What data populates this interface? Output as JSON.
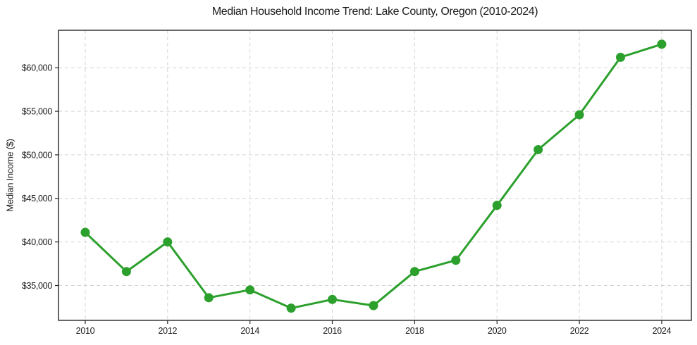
{
  "chart_data": {
    "type": "line",
    "title": "Median Household Income Trend: Lake County, Oregon (2010-2024)",
    "xlabel": "",
    "ylabel": "Median Income ($)",
    "series": [
      {
        "name": "median-household-income",
        "x": [
          2010,
          2011,
          2012,
          2013,
          2014,
          2015,
          2016,
          2017,
          2018,
          2019,
          2020,
          2021,
          2022,
          2023,
          2024
        ],
        "values": [
          41100,
          36600,
          40000,
          33600,
          34500,
          32400,
          33400,
          32700,
          36600,
          37900,
          44200,
          50600,
          54600,
          61200,
          62700
        ]
      }
    ],
    "x_ticks": {
      "values": [
        2010,
        2012,
        2014,
        2016,
        2018,
        2020,
        2022,
        2024
      ],
      "labels": [
        "2010",
        "2012",
        "2014",
        "2016",
        "2018",
        "2020",
        "2022",
        "2024"
      ]
    },
    "y_ticks": {
      "values": [
        35000,
        40000,
        45000,
        50000,
        55000,
        60000
      ],
      "labels": [
        "$35,000",
        "$40,000",
        "$45,000",
        "$50,000",
        "$55,000",
        "$60,000"
      ]
    },
    "xlim": [
      2009.35,
      2024.72
    ],
    "ylim": [
      31000,
      64300
    ],
    "grid": true,
    "legend": "none",
    "colors": {
      "line": "#2ca02c",
      "marker": "#2ca02c",
      "gridline": "#d4d4d4",
      "frame": "#262626",
      "text": "#1a1a1a"
    }
  }
}
